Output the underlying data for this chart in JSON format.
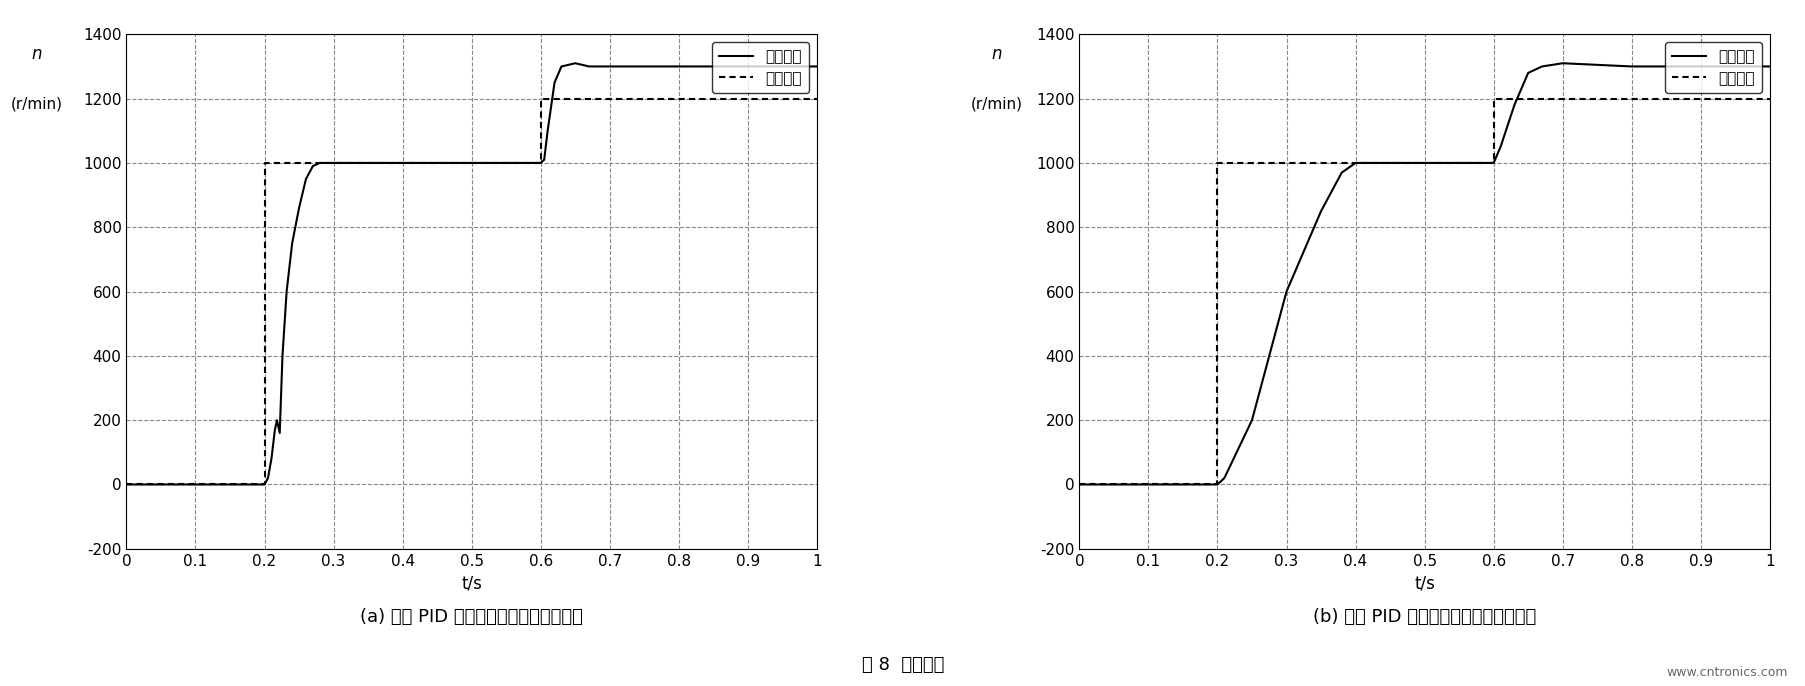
{
  "fig_width": 18.06,
  "fig_height": 6.86,
  "dpi": 100,
  "background_color": "#ffffff",
  "xlim": [
    0,
    1
  ],
  "ylim": [
    -200,
    1400
  ],
  "xticks": [
    0,
    0.1,
    0.2,
    0.3,
    0.4,
    0.5,
    0.6,
    0.7,
    0.8,
    0.9,
    1
  ],
  "yticks": [
    -200,
    0,
    200,
    400,
    600,
    800,
    1000,
    1200,
    1400
  ],
  "xlabel": "t/s",
  "ylabel_n": "n",
  "ylabel_unit": "(r/min)",
  "grid_color": "#888888",
  "grid_linestyle": "--",
  "legend_response": "响应曲线",
  "legend_input": "输入信号",
  "subtitle_a": "(a) 常规 PID 控制下的系统跟踪特能曲线",
  "subtitle_b": "(b) 模糊 PID 控制下的系统跟踪特能曲线",
  "figure_caption": "图 8  实验结果",
  "line_color": "#000000",
  "line_width": 1.5,
  "dotted_linewidth": 1.5,
  "chart_a_response_x": [
    0,
    0.19,
    0.2,
    0.205,
    0.21,
    0.215,
    0.218,
    0.222,
    0.226,
    0.232,
    0.24,
    0.25,
    0.26,
    0.27,
    0.28,
    0.29,
    0.3,
    0.35,
    0.4,
    0.5,
    0.6,
    0.605,
    0.61,
    0.62,
    0.63,
    0.65,
    0.67,
    0.7,
    0.8,
    0.9,
    1.0
  ],
  "chart_a_response_y": [
    0,
    0,
    0,
    20,
    80,
    170,
    200,
    160,
    400,
    600,
    750,
    860,
    950,
    990,
    1000,
    1000,
    1000,
    1000,
    1000,
    1000,
    1000,
    1010,
    1100,
    1250,
    1300,
    1310,
    1300,
    1300,
    1300,
    1300,
    1300
  ],
  "chart_a_input_x": [
    0,
    0.2,
    0.2,
    0.6,
    0.6,
    1.0
  ],
  "chart_a_input_y": [
    0,
    0,
    1000,
    1000,
    1200,
    1200
  ],
  "chart_b_response_x": [
    0,
    0.19,
    0.2,
    0.21,
    0.25,
    0.3,
    0.35,
    0.38,
    0.4,
    0.45,
    0.5,
    0.55,
    0.6,
    0.61,
    0.63,
    0.65,
    0.67,
    0.7,
    0.8,
    0.9,
    1.0
  ],
  "chart_b_response_y": [
    0,
    0,
    0,
    20,
    200,
    600,
    850,
    970,
    1000,
    1000,
    1000,
    1000,
    1000,
    1050,
    1180,
    1280,
    1300,
    1310,
    1300,
    1300,
    1300
  ],
  "chart_b_input_x": [
    0,
    0.2,
    0.2,
    0.6,
    0.6,
    1.0
  ],
  "chart_b_input_y": [
    0,
    0,
    1000,
    1000,
    1200,
    1200
  ],
  "website_text": "www.cntronics.com",
  "font_size_tick": 11,
  "font_size_legend": 11,
  "font_size_subtitle": 13,
  "font_size_caption": 13,
  "font_size_axis_label": 12
}
